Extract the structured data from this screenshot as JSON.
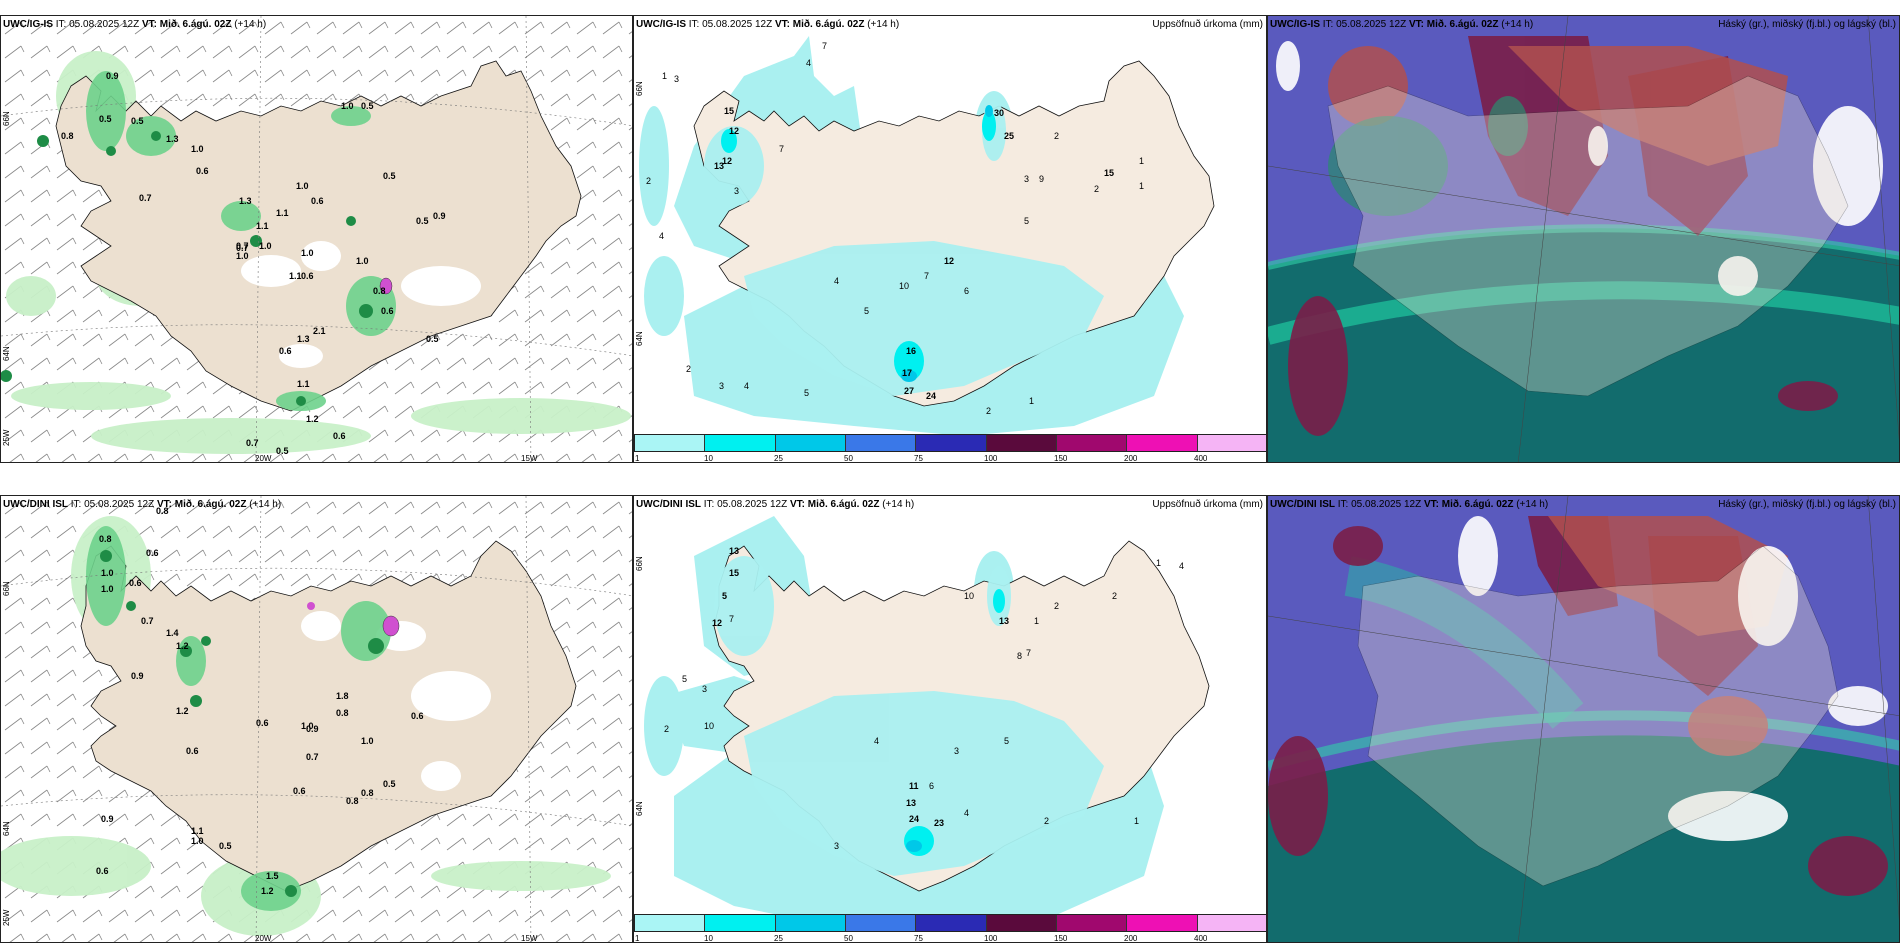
{
  "panels": {
    "p1": {
      "model": "UWC/IG-IS",
      "it_label": "IT:",
      "it_value": "05.08.2025 12Z",
      "vt_label": "VT:",
      "vt_value": "Mið. 6.ágú. 02Z",
      "lead": "(+14 h)"
    },
    "p2": {
      "model": "UWC/IG-IS",
      "it_label": "IT:",
      "it_value": "05.08.2025 12Z",
      "vt_label": "VT:",
      "vt_value": "Mið. 6.ágú. 02Z",
      "lead": "(+14 h)",
      "right": "Uppsöfnuð úrkoma (mm)"
    },
    "p3": {
      "model": "UWC/IG-IS",
      "it_label": "IT:",
      "it_value": "05.08.2025 12Z",
      "vt_label": "VT:",
      "vt_value": "Mið. 6.ágú. 02Z",
      "lead": "(+14 h)",
      "right": "Háský (gr.), miðský (fj.bl.) og lágský (bl.)"
    },
    "p4": {
      "model": "UWC/DINI ISL",
      "it_label": "IT:",
      "it_value": "05.08.2025 12Z",
      "vt_label": "VT:",
      "vt_value": "Mið. 6.ágú. 02Z",
      "lead": "(+14 h)"
    },
    "p5": {
      "model": "UWC/DINI ISL",
      "it_label": "IT:",
      "it_value": "05.08.2025 12Z",
      "vt_label": "VT:",
      "vt_value": "Mið. 6.ágú. 02Z",
      "lead": "(+14 h)",
      "right": "Uppsöfnuð úrkoma (mm)"
    },
    "p6": {
      "model": "UWC/DINI ISL",
      "it_label": "IT:",
      "it_value": "05.08.2025 12Z",
      "vt_label": "VT:",
      "vt_value": "Mið. 6.ágú. 02Z",
      "lead": "(+14 h)",
      "right": "Háský (gr.), miðský (fj.bl.) og lágský (bl.)"
    }
  },
  "axes": {
    "lon_20": "20W",
    "lon_15": "15W",
    "lat_66": "66N",
    "lat_64": "64N",
    "lon_25": "25W"
  },
  "colorbar": {
    "ticks": [
      "1",
      "10",
      "25",
      "50",
      "75",
      "100",
      "150",
      "200",
      "400"
    ],
    "colors": [
      "#aaf5f5",
      "#00f0f0",
      "#00c8e8",
      "#3a78e8",
      "#2a2ab4",
      "#5a0a3c",
      "#a0086e",
      "#ee10b4",
      "#f5b4f5"
    ]
  },
  "colors": {
    "land": "#ece0d0",
    "precip_light": "#aaf0f0",
    "wind_light": "#c8f0c8",
    "wind_mid": "#6ed28c",
    "wind_dark": "#1e8c46",
    "cloud_high": "#7a1e48",
    "cloud_mid": "#5a5ab4",
    "cloud_low": "#0a6e64"
  },
  "labels": {
    "p1": [
      "0.9",
      "0.5",
      "0.8",
      "0.5",
      "1.3",
      "1.0",
      "0.7",
      "0.5",
      "1.0",
      "0.6",
      "1.0",
      "0.6",
      "1.3",
      "0.7",
      "0.5",
      "0.5",
      "0.9",
      "1.1",
      "1.1",
      "0.7",
      "1.0",
      "1.0",
      "1.0",
      "1.1",
      "1.0",
      "0.6",
      "0.8",
      "0.6",
      "1.3",
      "0.5",
      "0.6",
      "2.1",
      "1.1",
      "1.2",
      "0.6",
      "0.7",
      "0.5"
    ],
    "p2": [
      "7",
      "4",
      "3",
      "1",
      "15",
      "12",
      "13",
      "12",
      "2",
      "3",
      "7",
      "4",
      "30",
      "25",
      "2",
      "1",
      "3",
      "9",
      "15",
      "1",
      "2",
      "5",
      "12",
      "10",
      "7",
      "6",
      "4",
      "5",
      "16",
      "17",
      "27",
      "24",
      "1",
      "2",
      "5",
      "2",
      "4",
      "3"
    ],
    "p4": [
      "0.8",
      "0.8",
      "1.0",
      "1.0",
      "0.6",
      "0.6",
      "0.7",
      "1.4",
      "1.2",
      "0.9",
      "1.2",
      "1.8",
      "0.8",
      "0.6",
      "1.0",
      "0.9",
      "0.6",
      "0.6",
      "0.7",
      "1.0",
      "0.8",
      "0.5",
      "0.6",
      "0.8",
      "0.9",
      "1.0",
      "0.5",
      "0.6",
      "1.5",
      "1.2",
      "1.1"
    ],
    "p5": [
      "1",
      "4",
      "2",
      "10",
      "13",
      "8",
      "7",
      "1",
      "2",
      "3",
      "5",
      "12",
      "7",
      "15",
      "13",
      "5",
      "10",
      "2",
      "4",
      "3",
      "5",
      "11",
      "6",
      "13",
      "24",
      "23",
      "4",
      "2",
      "3",
      "1"
    ]
  }
}
